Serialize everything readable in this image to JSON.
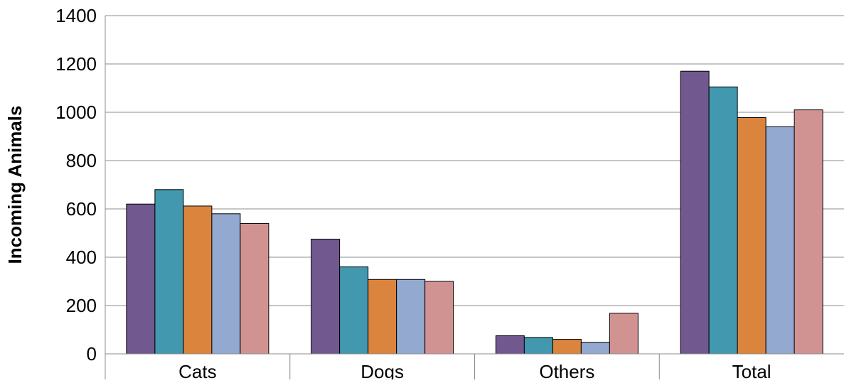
{
  "colors": {
    "gridline": "#8c8c8c",
    "bar_outline": "#000000",
    "background": "#ffffff"
  },
  "chart_data": {
    "type": "bar",
    "title": "",
    "xlabel": "",
    "ylabel": "Incoming Animals",
    "ylim": [
      0,
      1400
    ],
    "yticks": [
      0,
      200,
      400,
      600,
      800,
      1000,
      1200,
      1400
    ],
    "grid": true,
    "legend": "none",
    "categories": [
      "Cats",
      "Dogs",
      "Others",
      "Total"
    ],
    "series": [
      {
        "color": "#71588f",
        "values": [
          620,
          475,
          75,
          1170
        ]
      },
      {
        "color": "#4198af",
        "values": [
          680,
          360,
          68,
          1105
        ]
      },
      {
        "color": "#db843d",
        "values": [
          612,
          308,
          60,
          978
        ]
      },
      {
        "color": "#93a9cf",
        "values": [
          580,
          308,
          48,
          940
        ]
      },
      {
        "color": "#d19392",
        "values": [
          540,
          300,
          168,
          1010
        ]
      }
    ]
  }
}
